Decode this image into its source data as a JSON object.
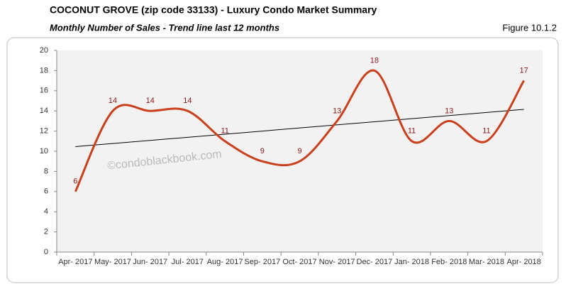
{
  "chart_data": {
    "type": "line",
    "title": "COCONUT GROVE (zip code 33133) - Luxury Condo Market Summary",
    "subtitle": "Monthly Number of Sales - Trend line last 12 months",
    "figure_label": "Figure 10.1.2",
    "watermark": "©condoblackbook.com",
    "categories": [
      "Apr- 2017",
      "May- 2017",
      "Jun- 2017",
      "Jul- 2017",
      "Aug- 2017",
      "Sep- 2017",
      "Oct- 2017",
      "Nov- 2017",
      "Dec- 2017",
      "Jan- 2018",
      "Feb- 2018",
      "Mar- 2018",
      "Apr- 2018"
    ],
    "values": [
      6,
      14,
      14,
      14,
      11,
      9,
      9,
      13,
      18,
      11,
      13,
      11,
      17
    ],
    "color": "#c9401c",
    "label_color": "#8b1a1a",
    "trend_color": "#000000",
    "trend_line": true,
    "ylim": [
      0,
      20
    ],
    "yticks": [
      0,
      2,
      4,
      6,
      8,
      10,
      12,
      14,
      16,
      18,
      20
    ]
  }
}
